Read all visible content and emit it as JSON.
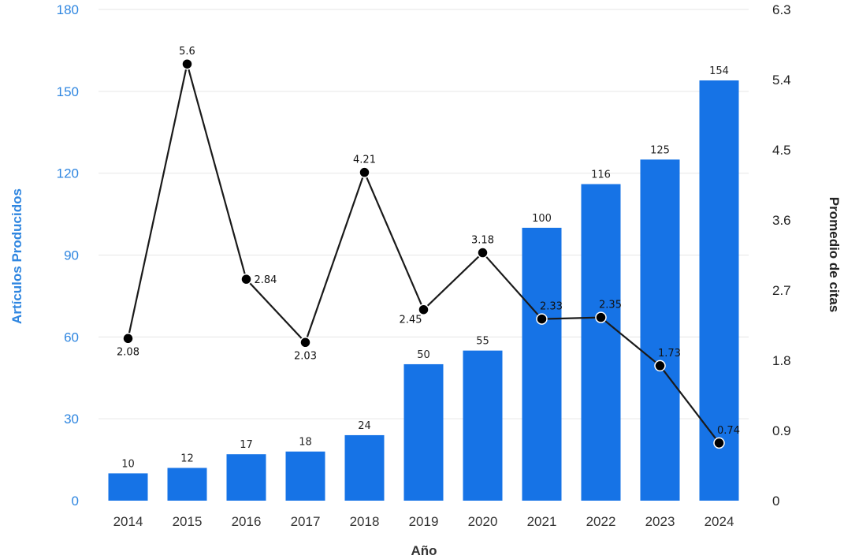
{
  "chart_data": {
    "type": "bar-line",
    "categories": [
      "2014",
      "2015",
      "2016",
      "2017",
      "2018",
      "2019",
      "2020",
      "2021",
      "2022",
      "2023",
      "2024"
    ],
    "xlabel": "Año",
    "series": [
      {
        "name": "Artículos Producidos",
        "type": "bar",
        "axis": "left",
        "values": [
          10,
          12,
          17,
          18,
          24,
          50,
          55,
          100,
          116,
          125,
          154
        ],
        "labels": [
          "10",
          "12",
          "17",
          "18",
          "24",
          "50",
          "55",
          "100",
          "116",
          "125",
          "154"
        ],
        "color": "#1673e6"
      },
      {
        "name": "Promedio de citas",
        "type": "line",
        "axis": "right",
        "values": [
          2.08,
          5.6,
          2.84,
          2.03,
          4.21,
          2.45,
          3.18,
          2.33,
          2.35,
          1.73,
          0.74
        ],
        "labels": [
          "2.08",
          "5.6",
          "2.84",
          "2.03",
          "4.21",
          "2.45",
          "3.18",
          "2.33",
          "2.35",
          "1.73",
          "0.74"
        ],
        "label_positions": [
          "below",
          "above",
          "right",
          "below",
          "above",
          "left",
          "above",
          "above",
          "above",
          "above",
          "above"
        ],
        "color": "#1a1a1a"
      }
    ],
    "y_left": {
      "label": "Artículos Producidos",
      "range": [
        0,
        180
      ],
      "ticks": [
        "0",
        "30",
        "60",
        "90",
        "120",
        "150",
        "180"
      ],
      "tick_values": [
        0,
        30,
        60,
        90,
        120,
        150,
        180
      ],
      "color": "#2f86e0"
    },
    "y_right": {
      "label": "Promedio de citas",
      "range": [
        0,
        6.3
      ],
      "ticks": [
        "0",
        "0.9",
        "1.8",
        "2.7",
        "3.6",
        "4.5",
        "5.4",
        "6.3"
      ],
      "tick_values": [
        0,
        0.9,
        1.8,
        2.7,
        3.6,
        4.5,
        5.4,
        6.3
      ]
    },
    "grid": true,
    "legend": "none"
  }
}
